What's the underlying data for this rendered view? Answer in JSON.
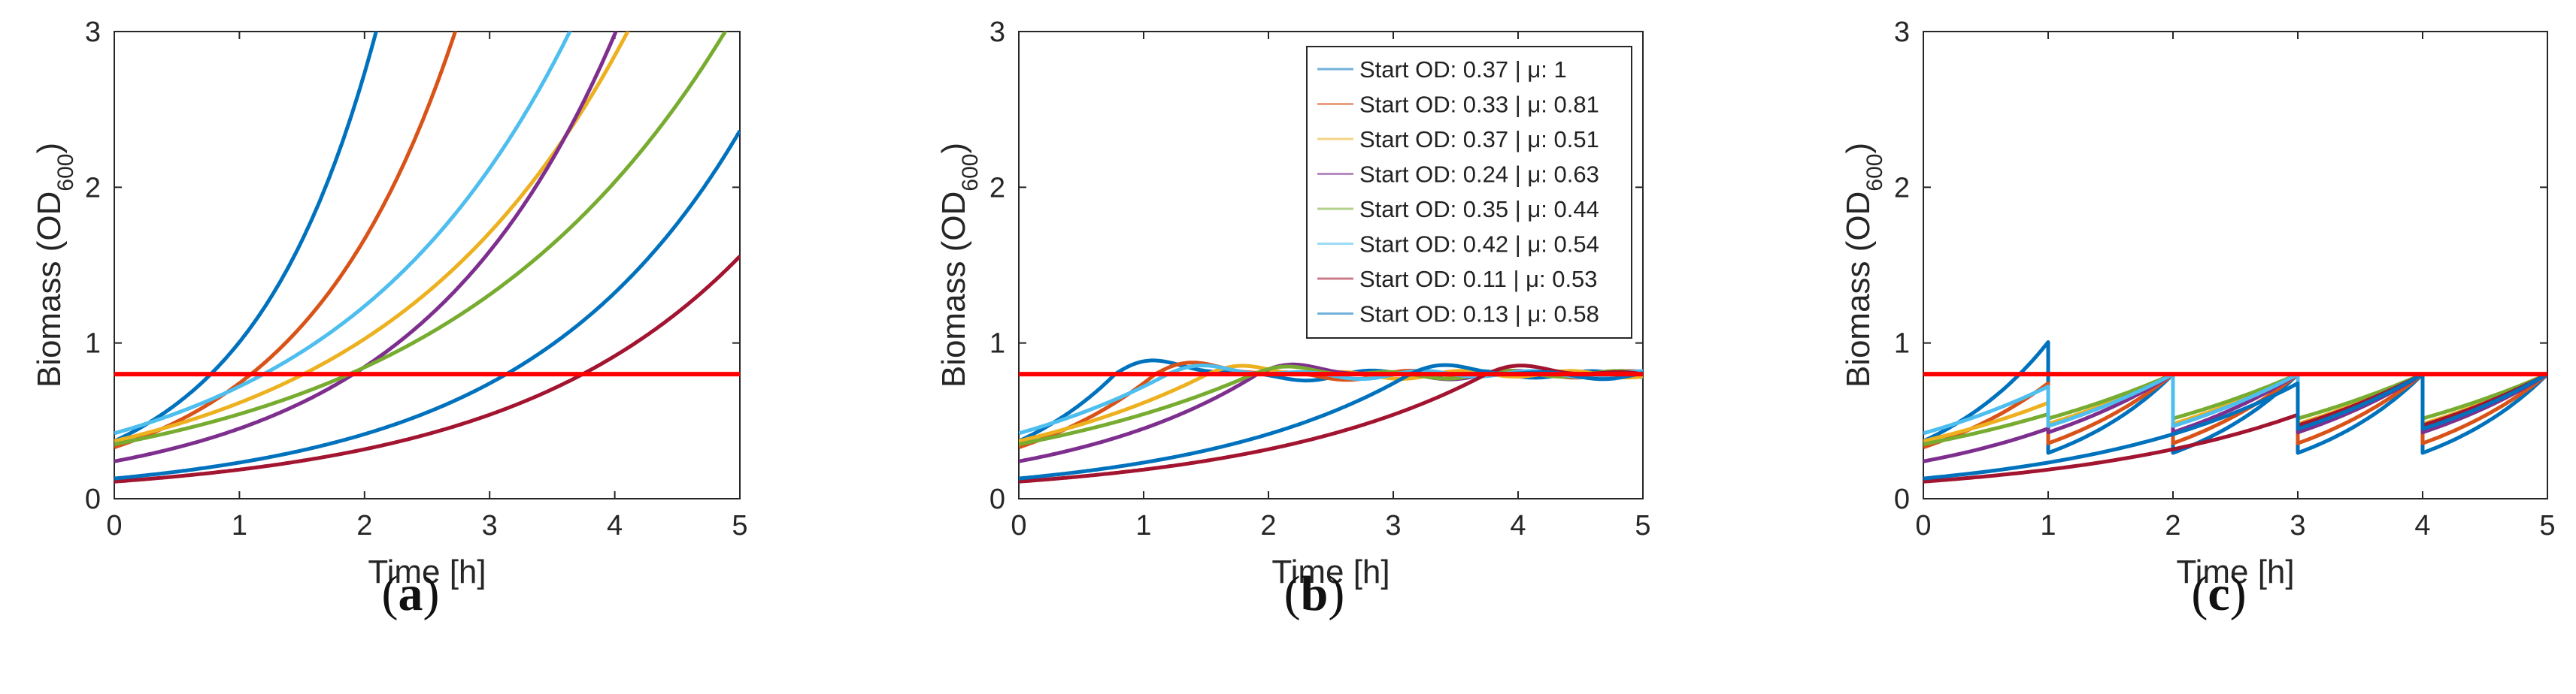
{
  "chart_data": [
    {
      "type": "line",
      "panel_label": "(a)",
      "xlabel": "Time [h]",
      "ylabel_main": "Biomass (OD",
      "ylabel_sub": "600",
      "ylabel_close": ")",
      "xlim": [
        0,
        5
      ],
      "ylim": [
        0,
        3
      ],
      "xticks": [
        "0",
        "1",
        "2",
        "3",
        "4",
        "5"
      ],
      "yticks": [
        "0",
        "1",
        "2",
        "3"
      ],
      "threshold": 0.8,
      "legend": false,
      "mode": "exponential"
    },
    {
      "type": "line",
      "panel_label": "(b)",
      "xlabel": "Time [h]",
      "ylabel_main": "Biomass (OD",
      "ylabel_sub": "600",
      "ylabel_close": ")",
      "xlim": [
        0,
        5
      ],
      "ylim": [
        0,
        3
      ],
      "xticks": [
        "0",
        "1",
        "2",
        "3",
        "4",
        "5"
      ],
      "yticks": [
        "0",
        "1",
        "2",
        "3"
      ],
      "threshold": 0.8,
      "legend": true,
      "mode": "controlled"
    },
    {
      "type": "line",
      "panel_label": "(c)",
      "xlabel": "Time [h]",
      "ylabel_main": "Biomass (OD",
      "ylabel_sub": "600",
      "ylabel_close": ")",
      "xlim": [
        0,
        5
      ],
      "ylim": [
        0,
        3
      ],
      "xticks": [
        "0",
        "1",
        "2",
        "3",
        "4",
        "5"
      ],
      "yticks": [
        "0",
        "1",
        "2",
        "3"
      ],
      "threshold": 0.8,
      "legend": false,
      "mode": "hourly-dilution"
    }
  ],
  "series": [
    {
      "name": "Start OD: 0.37 | μ: 1",
      "od0": 0.37,
      "mu": 1.0,
      "color": "#0072BD"
    },
    {
      "name": "Start OD: 0.33 | μ: 0.81",
      "od0": 0.33,
      "mu": 0.81,
      "color": "#D95319"
    },
    {
      "name": "Start OD: 0.37 | μ: 0.51",
      "od0": 0.37,
      "mu": 0.51,
      "color": "#EDB120"
    },
    {
      "name": "Start OD: 0.24 | μ: 0.63",
      "od0": 0.24,
      "mu": 0.63,
      "color": "#7E2F8E"
    },
    {
      "name": "Start OD: 0.35 | μ: 0.44",
      "od0": 0.35,
      "mu": 0.44,
      "color": "#77AC30"
    },
    {
      "name": "Start OD: 0.42 | μ: 0.54",
      "od0": 0.42,
      "mu": 0.54,
      "color": "#4DBEEE"
    },
    {
      "name": "Start OD: 0.11 | μ: 0.53",
      "od0": 0.11,
      "mu": 0.53,
      "color": "#A2142F"
    },
    {
      "name": "Start OD: 0.13 | μ: 0.58",
      "od0": 0.13,
      "mu": 0.58,
      "color": "#0072BD"
    }
  ],
  "threshold_color": "#FF0000"
}
